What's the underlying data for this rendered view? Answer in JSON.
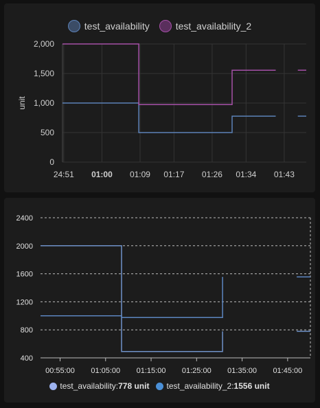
{
  "chart_data": [
    {
      "type": "line",
      "step": true,
      "ylabel": "unit",
      "ylim": [
        0,
        2000
      ],
      "y_ticks": [
        "2,000",
        "1,500",
        "1,000",
        "500",
        "0"
      ],
      "y_tick_values": [
        2000,
        1500,
        1000,
        500,
        0
      ],
      "x_ticks": [
        "24:51",
        "01:00",
        "01:09",
        "01:17",
        "01:26",
        "01:34",
        "01:43"
      ],
      "x_tick_minutes": [
        51,
        60,
        69,
        77,
        86,
        94,
        103
      ],
      "xlim_minutes": [
        50.7,
        108.2
      ],
      "grid": true,
      "legend_position": "top-center",
      "series": [
        {
          "name": "test_availability",
          "color": "#5c82b8",
          "points": [
            [
              50.7,
              1000
            ],
            [
              68.7,
              1000
            ],
            [
              68.7,
              500
            ],
            [
              90.7,
              500
            ],
            [
              90.7,
              778
            ],
            [
              101.0,
              778
            ]
          ],
          "tail": [
            [
              106.2,
              778
            ],
            [
              108.2,
              778
            ]
          ]
        },
        {
          "name": "test_availability_2",
          "color": "#a550a7",
          "points": [
            [
              50.7,
              2000
            ],
            [
              68.7,
              2000
            ],
            [
              68.7,
              975
            ],
            [
              90.7,
              975
            ],
            [
              90.7,
              1556
            ],
            [
              101.0,
              1556
            ]
          ],
          "tail": [
            [
              106.2,
              1556
            ],
            [
              108.2,
              1556
            ]
          ]
        }
      ]
    },
    {
      "type": "line",
      "step": true,
      "ylim": [
        400,
        2400
      ],
      "y_ticks": [
        "2400",
        "2000",
        "1600",
        "1200",
        "800",
        "400"
      ],
      "y_tick_values": [
        2400,
        2000,
        1600,
        1200,
        800,
        400
      ],
      "x_ticks": [
        "00:55:00",
        "01:05:00",
        "01:15:00",
        "01:25:00",
        "01:35:00",
        "01:45:00"
      ],
      "x_tick_minutes": [
        55,
        65,
        75,
        85,
        95,
        105
      ],
      "xlim_minutes": [
        50.7,
        110.0
      ],
      "grid": true,
      "legend_position": "bottom-center",
      "series": [
        {
          "name": "test_availability",
          "color": "#6f92c9",
          "points": [
            [
              50.7,
              2000
            ],
            [
              68.5,
              2000
            ],
            [
              68.5,
              490
            ],
            [
              90.7,
              490
            ],
            [
              90.7,
              778
            ]
          ],
          "tail": [
            [
              107.0,
              778
            ],
            [
              110.0,
              778
            ]
          ],
          "legend_value": "778 unit"
        },
        {
          "name": "test_availability_2",
          "color": "#5c86c0",
          "points": [
            [
              50.7,
              1000
            ],
            [
              68.5,
              1000
            ],
            [
              68.5,
              975
            ],
            [
              90.7,
              975
            ],
            [
              90.7,
              1556
            ]
          ],
          "tail": [
            [
              107.0,
              1556
            ],
            [
              110.0,
              1556
            ]
          ],
          "legend_value": "1556 unit"
        }
      ]
    }
  ],
  "legend2_labels": [
    {
      "name": "test_availability: ",
      "value": "778 unit",
      "color": "#9db3f0"
    },
    {
      "name": "test_availability_2: ",
      "value": "1556 unit",
      "color": "#4a8fd6"
    }
  ]
}
